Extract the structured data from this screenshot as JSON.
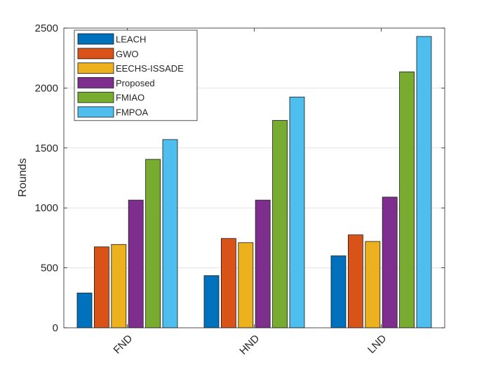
{
  "chart_data": {
    "type": "bar",
    "title": "",
    "xlabel": "",
    "ylabel": "Rounds",
    "categories": [
      "FND",
      "HND",
      "LND"
    ],
    "ylim": [
      0,
      2500
    ],
    "yticks": [
      0,
      500,
      1000,
      1500,
      2000,
      2500
    ],
    "grid": true,
    "legend_position": "top-left",
    "series": [
      {
        "name": "LEACH",
        "color": "#0072BD",
        "values": [
          290,
          435,
          600
        ]
      },
      {
        "name": "GWO",
        "color": "#D95319",
        "values": [
          675,
          745,
          775
        ]
      },
      {
        "name": "EECHS-ISSADE",
        "color": "#EDB120",
        "values": [
          695,
          710,
          720
        ]
      },
      {
        "name": "Proposed",
        "color": "#7E2F8E",
        "values": [
          1065,
          1065,
          1090
        ]
      },
      {
        "name": "FMIAO",
        "color": "#77AC30",
        "values": [
          1405,
          1730,
          2135
        ]
      },
      {
        "name": "FMPOA",
        "color": "#4DBEEE",
        "values": [
          1570,
          1925,
          2430
        ]
      }
    ]
  }
}
